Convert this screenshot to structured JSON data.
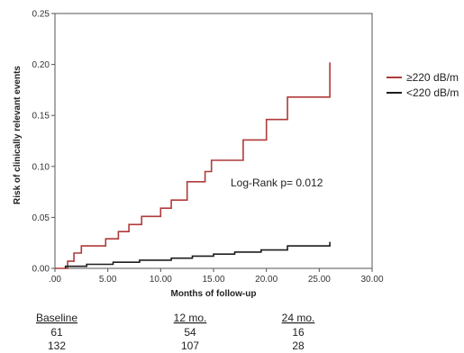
{
  "chart_data": {
    "type": "line",
    "subtype": "kaplan-meier-step",
    "xlabel": "Months of follow-up",
    "ylabel": "Risk of clinically relevant events",
    "xlim": [
      0,
      30
    ],
    "ylim": [
      0,
      0.25
    ],
    "x_ticks": [
      ".00",
      "5.00",
      "10.00",
      "15.00",
      "20.00",
      "25.00",
      "30.00"
    ],
    "y_ticks": [
      "0.00",
      "0.05",
      "0.10",
      "0.15",
      "0.20",
      "0.25"
    ],
    "grid": false,
    "legend_position": "right",
    "annotation": "Log-Rank p= 0.012",
    "series": [
      {
        "name": "≥220 dB/m",
        "color": "#b03a3a",
        "points": [
          [
            0,
            0
          ],
          [
            1.2,
            0
          ],
          [
            1.2,
            0.007
          ],
          [
            1.8,
            0.007
          ],
          [
            1.8,
            0.015
          ],
          [
            2.5,
            0.015
          ],
          [
            2.5,
            0.022
          ],
          [
            4.8,
            0.022
          ],
          [
            4.8,
            0.029
          ],
          [
            6.0,
            0.029
          ],
          [
            6.0,
            0.036
          ],
          [
            7.0,
            0.036
          ],
          [
            7.0,
            0.043
          ],
          [
            8.2,
            0.043
          ],
          [
            8.2,
            0.051
          ],
          [
            10.0,
            0.051
          ],
          [
            10.0,
            0.059
          ],
          [
            11.0,
            0.059
          ],
          [
            11.0,
            0.067
          ],
          [
            12.5,
            0.067
          ],
          [
            12.5,
            0.085
          ],
          [
            14.2,
            0.085
          ],
          [
            14.2,
            0.095
          ],
          [
            14.8,
            0.095
          ],
          [
            14.8,
            0.106
          ],
          [
            17.8,
            0.106
          ],
          [
            17.8,
            0.126
          ],
          [
            20.0,
            0.126
          ],
          [
            20.0,
            0.146
          ],
          [
            22.0,
            0.146
          ],
          [
            22.0,
            0.168
          ],
          [
            26.0,
            0.168
          ],
          [
            26.0,
            0.202
          ]
        ]
      },
      {
        "name": "<220 dB/m",
        "color": "#1e1e1e",
        "points": [
          [
            1.0,
            0
          ],
          [
            1.0,
            0.002
          ],
          [
            3.0,
            0.002
          ],
          [
            3.0,
            0.004
          ],
          [
            5.5,
            0.004
          ],
          [
            5.5,
            0.006
          ],
          [
            8.0,
            0.006
          ],
          [
            8.0,
            0.008
          ],
          [
            11.0,
            0.008
          ],
          [
            11.0,
            0.01
          ],
          [
            13.0,
            0.01
          ],
          [
            13.0,
            0.012
          ],
          [
            15.0,
            0.012
          ],
          [
            15.0,
            0.014
          ],
          [
            17.0,
            0.014
          ],
          [
            17.0,
            0.016
          ],
          [
            19.5,
            0.016
          ],
          [
            19.5,
            0.018
          ],
          [
            22.0,
            0.018
          ],
          [
            22.0,
            0.022
          ],
          [
            26.0,
            0.022
          ],
          [
            26.0,
            0.026
          ]
        ]
      }
    ],
    "risk_table": {
      "headers": [
        "Baseline",
        "12 mo.",
        "24 mo."
      ],
      "rows": [
        [
          "61",
          "54",
          "16"
        ],
        [
          "132",
          "107",
          "28"
        ]
      ]
    }
  }
}
